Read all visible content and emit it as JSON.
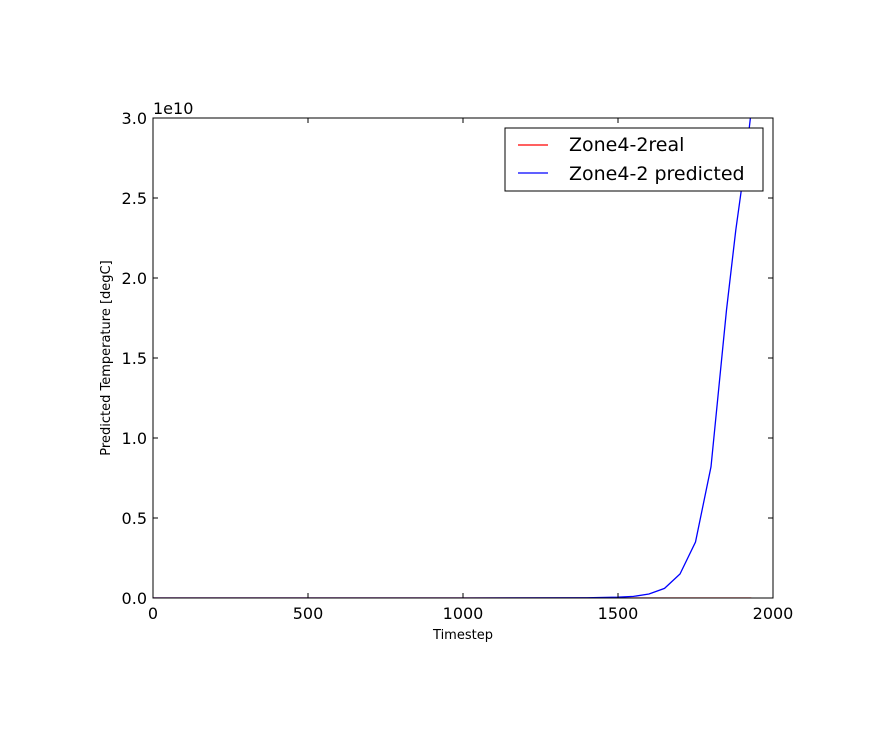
{
  "chart_data": {
    "type": "line",
    "xlabel": "Timestep",
    "ylabel": "Predicted Temperature [degC]",
    "y_offset_label": "1e10",
    "xlim": [
      0,
      2000
    ],
    "ylim": [
      0,
      3.0
    ],
    "x_ticks": [
      "0",
      "500",
      "1000",
      "1500",
      "2000"
    ],
    "y_ticks": [
      "0.0",
      "0.5",
      "1.0",
      "1.5",
      "2.0",
      "2.5",
      "3.0"
    ],
    "grid": false,
    "legend_position": "top-right",
    "series": [
      {
        "name": "Zone4-2real",
        "color": "#ff0000",
        "x": [
          0,
          200,
          400,
          600,
          800,
          1000,
          1200,
          1400,
          1600,
          1800,
          1930
        ],
        "y": [
          0,
          0,
          0,
          0,
          0,
          0,
          0,
          0,
          0,
          0,
          0
        ]
      },
      {
        "name": "Zone4-2 predicted",
        "color": "#0000ff",
        "x": [
          0,
          500,
          1000,
          1400,
          1500,
          1550,
          1600,
          1650,
          1700,
          1750,
          1800,
          1850,
          1880,
          1900,
          1920,
          1930
        ],
        "y": [
          0,
          0,
          0,
          0.001,
          0.005,
          0.01,
          0.025,
          0.06,
          0.15,
          0.35,
          0.82,
          1.8,
          2.3,
          2.58,
          2.88,
          3.05
        ]
      }
    ]
  }
}
